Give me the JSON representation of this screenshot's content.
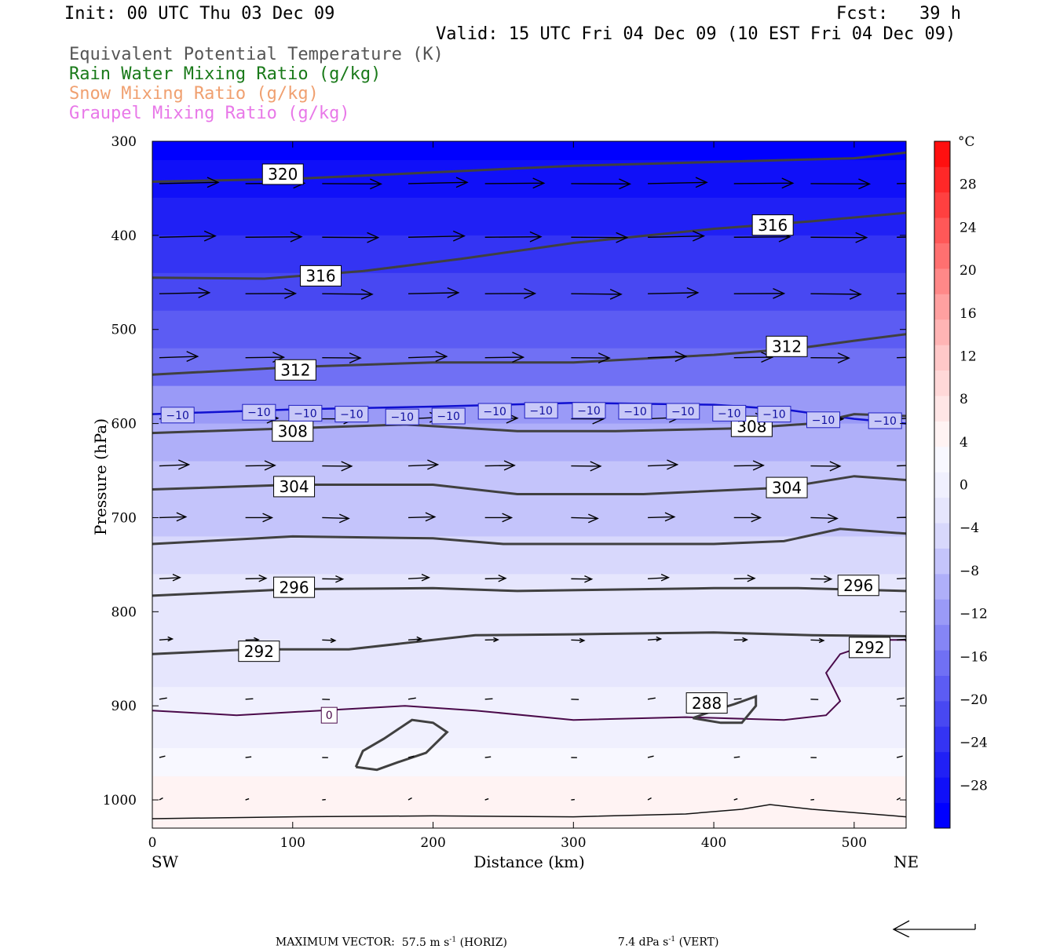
{
  "header": {
    "init": "Init: 00 UTC Thu 03 Dec 09",
    "fcst": "Fcst:   39 h",
    "valid": "Valid: 15 UTC Fri 04 Dec 09 (10 EST Fri 04 Dec 09)",
    "legend": [
      {
        "text": "Equivalent Potential Temperature (K)",
        "color": "#555555"
      },
      {
        "text": "Rain Water Mixing Ratio (g/kg)",
        "color": "#1a7a1a"
      },
      {
        "text": "Snow Mixing Ratio (g/kg)",
        "color": "#f0a070"
      },
      {
        "text": "Graupel Mixing Ratio (g/kg)",
        "color": "#e878e8"
      }
    ]
  },
  "footer": {
    "max_vector_label": "MAXIMUM VECTOR:",
    "horiz": "57.5 m s",
    "horiz_sup": "-1",
    "horiz_suffix": " (HORIZ)",
    "vert": "7.4 dPa s",
    "vert_sup": "-1",
    "vert_suffix": " (VERT)"
  },
  "chart_data": {
    "type": "heatmap",
    "xlabel": "Distance (km)",
    "ylabel": "Pressure (hPa)",
    "xlim": [
      0,
      537
    ],
    "ylim": [
      1030,
      300
    ],
    "x_ticks": [
      0,
      100,
      200,
      300,
      400,
      500
    ],
    "y_ticks": [
      300,
      400,
      500,
      600,
      700,
      800,
      900,
      1000
    ],
    "left_end": "SW",
    "right_end": "NE",
    "colorbar": {
      "unit": "°C",
      "tick_labels": [
        "28",
        "24",
        "20",
        "16",
        "12",
        "8",
        "4",
        "0",
        "−4",
        "−8",
        "−12",
        "−16",
        "−20",
        "−24",
        "−28"
      ],
      "tick_values": [
        28,
        24,
        20,
        16,
        12,
        8,
        4,
        0,
        -4,
        -8,
        -12,
        -16,
        -20,
        -24,
        -28
      ],
      "range": [
        -32,
        32
      ],
      "colors": [
        "#0000ff",
        "#1010f8",
        "#2020f5",
        "#3434f3",
        "#4848f2",
        "#5c5cf3",
        "#7070f4",
        "#8585f5",
        "#9a9af7",
        "#afaff9",
        "#c4c4fb",
        "#d8d8fc",
        "#e6e6fd",
        "#f0f0fe",
        "#f8f8ff",
        "#fff3f3",
        "#ffe6e6",
        "#ffd8d8",
        "#ffc8c8",
        "#ffb4b4",
        "#ffa0a0",
        "#ff8888",
        "#ff7070",
        "#ff5858",
        "#ff4040",
        "#ff2828",
        "#ff1010"
      ]
    },
    "temperature_rows": [
      {
        "p": 300,
        "t": -30
      },
      {
        "p": 340,
        "t": -29
      },
      {
        "p": 380,
        "t": -27
      },
      {
        "p": 420,
        "t": -24
      },
      {
        "p": 460,
        "t": -22
      },
      {
        "p": 500,
        "t": -19
      },
      {
        "p": 540,
        "t": -16
      },
      {
        "p": 580,
        "t": -12.5
      },
      {
        "p": 620,
        "t": -10
      },
      {
        "p": 660,
        "t": -8
      },
      {
        "p": 700,
        "t": -6
      },
      {
        "p": 740,
        "t": -4.5
      },
      {
        "p": 780,
        "t": -3.5
      },
      {
        "p": 820,
        "t": -2.5
      },
      {
        "p": 860,
        "t": -1.5
      },
      {
        "p": 900,
        "t": -0.5
      },
      {
        "p": 930,
        "t": 1
      },
      {
        "p": 960,
        "t": 2.5
      },
      {
        "p": 990,
        "t": 4
      },
      {
        "p": 1015,
        "t": 5.5
      }
    ],
    "theta_e_contours": [
      {
        "value": 320,
        "label": "320",
        "points": [
          [
            0,
            343
          ],
          [
            100,
            340
          ],
          [
            200,
            333
          ],
          [
            300,
            326
          ],
          [
            400,
            322
          ],
          [
            500,
            318
          ],
          [
            537,
            312
          ]
        ],
        "label_at": [
          [
            93,
            335
          ]
        ]
      },
      {
        "value": 316,
        "label": "316",
        "points": [
          [
            0,
            445
          ],
          [
            80,
            446
          ],
          [
            150,
            438
          ],
          [
            220,
            425
          ],
          [
            300,
            408
          ],
          [
            400,
            393
          ],
          [
            470,
            385
          ],
          [
            537,
            376
          ]
        ],
        "label_at": [
          [
            120,
            443
          ],
          [
            442,
            389
          ]
        ]
      },
      {
        "value": 312,
        "label": "312",
        "points": [
          [
            0,
            548
          ],
          [
            100,
            540
          ],
          [
            200,
            535
          ],
          [
            300,
            535
          ],
          [
            400,
            527
          ],
          [
            460,
            520
          ],
          [
            500,
            512
          ],
          [
            537,
            505
          ]
        ],
        "label_at": [
          [
            102,
            543
          ],
          [
            452,
            518
          ]
        ]
      },
      {
        "value": 308,
        "label": "308",
        "points": [
          [
            0,
            610
          ],
          [
            100,
            605
          ],
          [
            180,
            601
          ],
          [
            260,
            608
          ],
          [
            330,
            608
          ],
          [
            420,
            605
          ],
          [
            470,
            600
          ],
          [
            500,
            590
          ],
          [
            537,
            592
          ]
        ],
        "label_at": [
          [
            100,
            608
          ],
          [
            427,
            603
          ]
        ]
      },
      {
        "value": 304,
        "label": "304",
        "points": [
          [
            0,
            670
          ],
          [
            100,
            665
          ],
          [
            200,
            665
          ],
          [
            260,
            675
          ],
          [
            350,
            675
          ],
          [
            450,
            668
          ],
          [
            500,
            656
          ],
          [
            537,
            660
          ]
        ],
        "label_at": [
          [
            101,
            667
          ],
          [
            452,
            668
          ]
        ]
      },
      {
        "value": 300,
        "label": "",
        "points": [
          [
            0,
            728
          ],
          [
            100,
            720
          ],
          [
            200,
            722
          ],
          [
            250,
            728
          ],
          [
            400,
            728
          ],
          [
            450,
            725
          ],
          [
            490,
            712
          ],
          [
            537,
            717
          ]
        ],
        "label_at": []
      },
      {
        "value": 296,
        "label": "296",
        "points": [
          [
            0,
            783
          ],
          [
            100,
            776
          ],
          [
            200,
            775
          ],
          [
            260,
            778
          ],
          [
            400,
            775
          ],
          [
            460,
            775
          ],
          [
            537,
            778
          ]
        ],
        "label_at": [
          [
            101,
            774
          ],
          [
            503,
            772
          ]
        ]
      },
      {
        "value": 292,
        "label": "292",
        "points": [
          [
            0,
            845
          ],
          [
            70,
            840
          ],
          [
            140,
            840
          ],
          [
            230,
            825
          ],
          [
            300,
            824
          ],
          [
            400,
            822
          ],
          [
            470,
            825
          ],
          [
            537,
            826
          ]
        ],
        "label_at": [
          [
            76,
            842
          ],
          [
            511,
            838
          ]
        ]
      }
    ],
    "theta_e_closed_contours": [
      {
        "value": 288,
        "label": "288",
        "points": [
          [
            385,
            913
          ],
          [
            400,
            905
          ],
          [
            415,
            898
          ],
          [
            430,
            890
          ],
          [
            430,
            900
          ],
          [
            420,
            918
          ],
          [
            405,
            918
          ],
          [
            385,
            913
          ]
        ],
        "label_at": [
          [
            395,
            897
          ]
        ]
      },
      {
        "value": 288,
        "label": "",
        "points": [
          [
            145,
            965
          ],
          [
            150,
            948
          ],
          [
            165,
            935
          ],
          [
            185,
            915
          ],
          [
            200,
            918
          ],
          [
            210,
            928
          ],
          [
            195,
            950
          ],
          [
            175,
            960
          ],
          [
            160,
            968
          ],
          [
            145,
            965
          ]
        ],
        "label_at": []
      }
    ],
    "isotherm_minus10": {
      "label": "−10",
      "points": [
        [
          0,
          590
        ],
        [
          100,
          585
        ],
        [
          200,
          582
        ],
        [
          300,
          578
        ],
        [
          400,
          580
        ],
        [
          450,
          585
        ],
        [
          500,
          595
        ],
        [
          537,
          600
        ]
      ],
      "label_at": [
        [
          18,
          591
        ],
        [
          76,
          588
        ],
        [
          109,
          589
        ],
        [
          142,
          590
        ],
        [
          178,
          593
        ],
        [
          211,
          592
        ],
        [
          244,
          587
        ],
        [
          277,
          586
        ],
        [
          311,
          586
        ],
        [
          344,
          587
        ],
        [
          378,
          587
        ],
        [
          411,
          589
        ],
        [
          443,
          590
        ],
        [
          478,
          596
        ],
        [
          522,
          597
        ]
      ]
    },
    "isotherm_0": {
      "label": "0",
      "points": [
        [
          0,
          905
        ],
        [
          60,
          910
        ],
        [
          120,
          905
        ],
        [
          180,
          900
        ],
        [
          230,
          905
        ],
        [
          300,
          915
        ],
        [
          380,
          912
        ],
        [
          450,
          915
        ],
        [
          480,
          910
        ],
        [
          490,
          895
        ],
        [
          480,
          865
        ],
        [
          490,
          845
        ],
        [
          520,
          830
        ],
        [
          537,
          830
        ]
      ],
      "label_at": [
        [
          126,
          910
        ]
      ]
    },
    "surface": [
      [
        0,
        1020
      ],
      [
        100,
        1018
      ],
      [
        200,
        1017
      ],
      [
        300,
        1018
      ],
      [
        380,
        1015
      ],
      [
        420,
        1010
      ],
      [
        440,
        1005
      ],
      [
        470,
        1010
      ],
      [
        537,
        1018
      ]
    ],
    "wind_vectors": [
      {
        "p": 345,
        "u": 1.0,
        "w": 0.02
      },
      {
        "p": 402,
        "u": 0.95,
        "w": 0.02
      },
      {
        "p": 462,
        "u": 0.85,
        "w": 0.01
      },
      {
        "p": 530,
        "u": 0.65,
        "w": 0.02
      },
      {
        "p": 595,
        "u": 0.55,
        "w": 0.03
      },
      {
        "p": 645,
        "u": 0.5,
        "w": 0.02
      },
      {
        "p": 700,
        "u": 0.45,
        "w": 0.0
      },
      {
        "p": 765,
        "u": 0.35,
        "w": 0.02
      },
      {
        "p": 830,
        "u": 0.22,
        "w": 0.01
      },
      {
        "p": 893,
        "u": 0.13,
        "w": 0.02
      },
      {
        "p": 955,
        "u": 0.1,
        "w": 0.03
      },
      {
        "p": 1000,
        "u": 0.06,
        "w": 0.05
      }
    ],
    "grid": false
  }
}
